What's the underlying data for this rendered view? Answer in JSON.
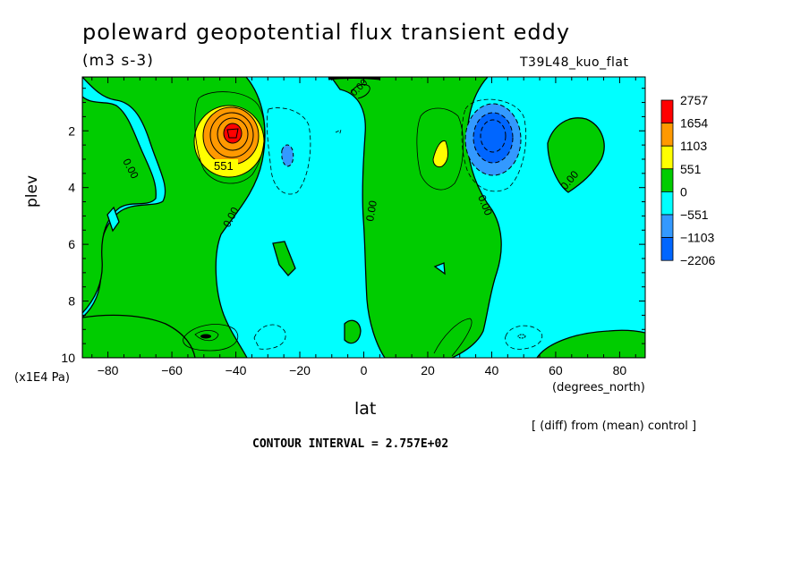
{
  "chart_data": {
    "type": "heatmap",
    "title": "poleward geopotential flux transient eddy",
    "subtitle": "(m3 s-3)",
    "experiment": "T39L48_kuo_flat",
    "xlabel": "lat",
    "x_units": "(degrees_north)",
    "ylabel": "plev",
    "y_units": "(x1E4 Pa)",
    "xlim": [
      -88,
      88
    ],
    "ylim": [
      10,
      0.1
    ],
    "xticks": [
      -80,
      -60,
      -40,
      -20,
      0,
      20,
      40,
      60,
      80
    ],
    "yticks": [
      2,
      4,
      6,
      8,
      10
    ],
    "colorbar": {
      "levels": [
        "2757",
        "1654",
        "1103",
        "551",
        "0",
        "−551",
        "−1103",
        "−2206"
      ],
      "colors": [
        "#ff0000",
        "#ff9900",
        "#ffff00",
        "#00cc00",
        "#00ffff",
        "#3399ff",
        "#0066ff"
      ]
    },
    "contour_labels": [
      "551",
      "0.00",
      "0.00",
      "0.00",
      "0.00",
      "0.00",
      "0.00",
      "0.00"
    ],
    "features": [
      {
        "kind": "max",
        "lat": -43,
        "plev": 2.0,
        "value": 2757
      },
      {
        "kind": "min",
        "lat": 42,
        "plev": 2.1,
        "value": -2206
      },
      {
        "kind": "positive-band",
        "lat_range": [
          -88,
          -40
        ]
      },
      {
        "kind": "positive-band",
        "lat_range": [
          0,
          35
        ]
      },
      {
        "kind": "negative-band",
        "lat_range": [
          -35,
          0
        ]
      },
      {
        "kind": "negative-band",
        "lat_range": [
          45,
          88
        ]
      }
    ],
    "footnote": "[ (diff) from (mean) control ]",
    "contour_interval": "CONTOUR INTERVAL = 2.757E+02"
  }
}
